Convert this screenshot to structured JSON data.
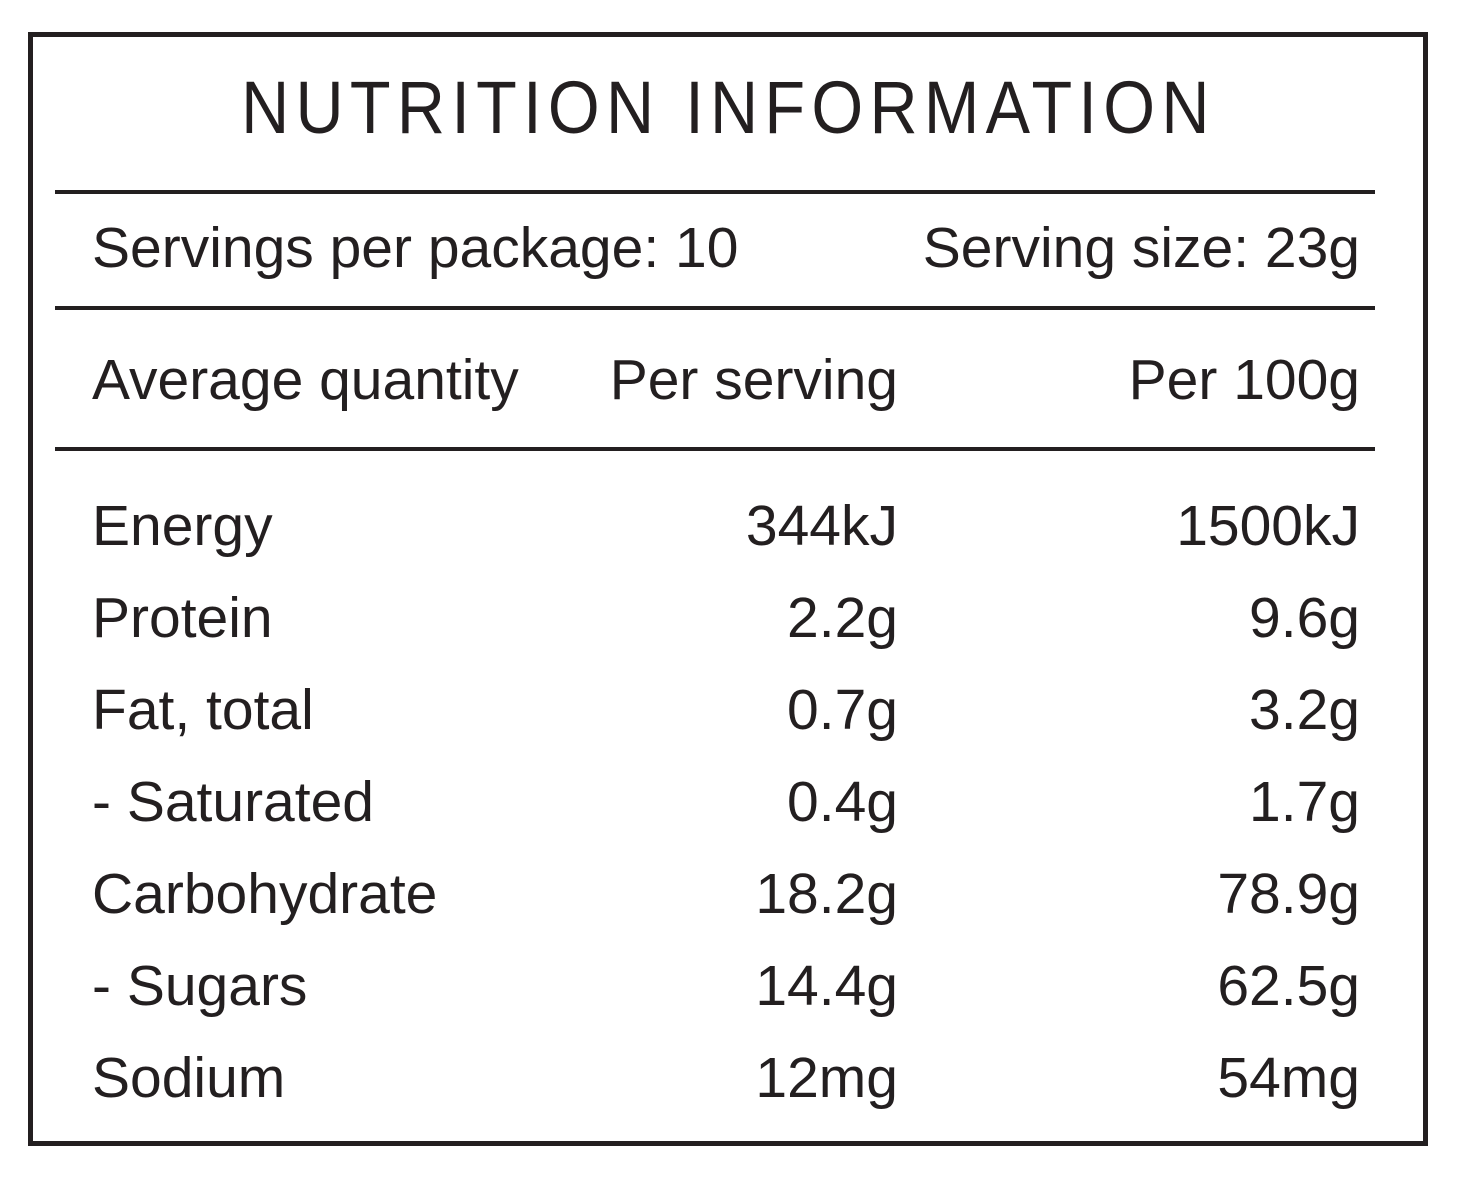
{
  "title": "NUTRITION INFORMATION",
  "serving_info": {
    "servings_per_package": "Servings per package: 10",
    "serving_size": "Serving size: 23g"
  },
  "table": {
    "columns": [
      "Average quantity",
      "Per serving",
      "Per 100g"
    ],
    "rows": [
      {
        "name": "Energy",
        "per_serving": "344kJ",
        "per_100g": "1500kJ"
      },
      {
        "name": "Protein",
        "per_serving": "2.2g",
        "per_100g": "9.6g"
      },
      {
        "name": "Fat, total",
        "per_serving": "0.7g",
        "per_100g": "3.2g"
      },
      {
        "name": "- Saturated",
        "per_serving": "0.4g",
        "per_100g": "1.7g"
      },
      {
        "name": "Carbohydrate",
        "per_serving": "18.2g",
        "per_100g": "78.9g"
      },
      {
        "name": "- Sugars",
        "per_serving": "14.4g",
        "per_100g": "62.5g"
      },
      {
        "name": "Sodium",
        "per_serving": "12mg",
        "per_100g": "54mg"
      }
    ]
  },
  "colors": {
    "text": "#231f20",
    "lines": "#231f20",
    "background": "#ffffff"
  }
}
